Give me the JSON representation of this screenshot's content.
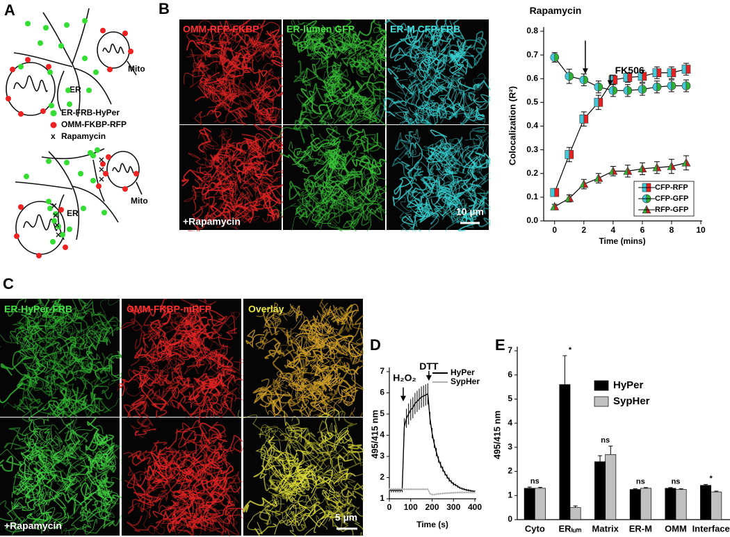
{
  "figure": {
    "panel_labels": [
      "A",
      "B",
      "C",
      "D",
      "E"
    ],
    "diagram": {
      "labels": [
        "ER",
        "Mito",
        "ER",
        "Mito"
      ],
      "legend": [
        "ER-FRB-HyPer",
        "OMM-FKBP-RFP",
        "Rapamycin"
      ],
      "legend_symbol": "x"
    },
    "images_b": {
      "channels": [
        "OMM-RFP-FKBP",
        "ER-lumen GFP",
        "ER-M CFP-FRB"
      ],
      "treatment": "+Rapamycin",
      "scale_bar": "10 µm"
    },
    "images_c": {
      "channels": [
        "ER-HyPer-FRB",
        "OMM-FKBP-mRFP",
        "Overlay"
      ],
      "treatment": "+Rapamycin",
      "scale_bar": "5 µm"
    }
  },
  "chart_data": [
    {
      "type": "line",
      "x_label": "Time (mins)",
      "y_label": "Colocalization (R²)",
      "x": [
        0,
        1,
        2,
        3,
        4,
        5,
        6,
        7,
        8,
        9
      ],
      "series": [
        {
          "name": "CFP-RFP",
          "marker": "square",
          "colors": [
            "#40c8d8",
            "#e82020"
          ],
          "values": [
            0.12,
            0.28,
            0.43,
            0.5,
            0.595,
            0.605,
            0.61,
            0.625,
            0.625,
            0.64
          ],
          "errors": [
            0.015,
            0.03,
            0.03,
            0.03,
            0.02,
            0.02,
            0.025,
            0.025,
            0.025,
            0.025
          ]
        },
        {
          "name": "CFP-GFP",
          "marker": "circle",
          "colors": [
            "#40c8d8",
            "#30b030"
          ],
          "values": [
            0.69,
            0.61,
            0.595,
            0.565,
            0.55,
            0.55,
            0.555,
            0.565,
            0.57,
            0.57
          ],
          "errors": [
            0.02,
            0.03,
            0.025,
            0.025,
            0.025,
            0.025,
            0.025,
            0.025,
            0.025,
            0.025
          ]
        },
        {
          "name": "RFP-GFP",
          "marker": "triangle",
          "colors": [
            "#30b030",
            "#c82020"
          ],
          "values": [
            0.06,
            0.095,
            0.155,
            0.18,
            0.21,
            0.21,
            0.22,
            0.225,
            0.23,
            0.245
          ],
          "errors": [
            0.01,
            0.015,
            0.02,
            0.02,
            0.02,
            0.025,
            0.025,
            0.025,
            0.03,
            0.03
          ]
        }
      ],
      "annotations": [
        {
          "text": "Rapamycin",
          "x": 2.1,
          "y": 0.62
        },
        {
          "text": "FK506",
          "x": 3.8,
          "y": 0.57
        }
      ],
      "xlim": [
        -0.75,
        10
      ],
      "xticks": [
        0,
        2,
        4,
        6,
        8,
        10
      ],
      "ylim": [
        0,
        0.8
      ],
      "yticks": [
        {
          "value": 0,
          "label": "0.0"
        },
        0.1,
        0.2,
        0.3,
        0.4,
        0.5,
        0.6,
        0.7,
        0.8
      ],
      "legend": "lower right"
    },
    {
      "type": "line",
      "x_label": "Time (s)",
      "y_label": "495/415 nm",
      "x": [
        0,
        10,
        20,
        30,
        40,
        50,
        60,
        70,
        80,
        90,
        100,
        110,
        120,
        130,
        140,
        150,
        160,
        170,
        180,
        190,
        200,
        210,
        220,
        230,
        240,
        250,
        260,
        270,
        280,
        290,
        300,
        310,
        320,
        330,
        340,
        350,
        360,
        370,
        380,
        390,
        400
      ],
      "series": [
        {
          "name": "HyPer",
          "color": "#000000",
          "values": [
            1.4,
            1.4,
            1.4,
            1.4,
            1.4,
            1.4,
            1.4,
            4.4,
            4.8,
            5.0,
            5.2,
            5.3,
            5.5,
            5.6,
            5.7,
            5.8,
            5.85,
            5.9,
            5.95,
            4.8,
            4.1,
            3.6,
            3.2,
            2.85,
            2.6,
            2.4,
            2.2,
            2.05,
            1.9,
            1.8,
            1.7,
            1.65,
            1.58,
            1.52,
            1.48,
            1.45,
            1.42,
            1.4,
            1.38,
            1.36,
            1.35
          ],
          "errors": [
            0.1,
            0.1,
            0.1,
            0.1,
            0.1,
            0.1,
            0.1,
            0.4,
            0.45,
            0.5,
            0.5,
            0.5,
            0.5,
            0.5,
            0.5,
            0.5,
            0.5,
            0.5,
            0.5,
            0.3,
            0.25,
            0.2,
            0.2,
            0.15,
            0.15,
            0.12,
            0.1,
            0.1,
            0.1,
            0.08,
            0.08,
            0.06,
            0.06,
            0.05,
            0.05,
            0.05,
            0.05,
            0.05,
            0.05,
            0.05,
            0.05
          ]
        },
        {
          "name": "SypHer",
          "color": "#b0b0b0",
          "values": [
            1.45,
            1.45,
            1.45,
            1.45,
            1.45,
            1.45,
            1.45,
            1.45,
            1.45,
            1.45,
            1.45,
            1.45,
            1.45,
            1.45,
            1.45,
            1.45,
            1.45,
            1.45,
            1.45,
            1.25,
            1.2,
            1.2,
            1.22,
            1.23,
            1.24,
            1.25,
            1.26,
            1.27,
            1.27,
            1.28,
            1.28,
            1.29,
            1.29,
            1.3,
            1.3,
            1.3,
            1.3,
            1.3,
            1.3,
            1.3,
            1.3
          ],
          "errors": [
            0.05,
            0.05,
            0.05,
            0.05,
            0.05,
            0.05,
            0.05,
            0.05,
            0.05,
            0.05,
            0.05,
            0.05,
            0.05,
            0.05,
            0.05,
            0.05,
            0.05,
            0.05,
            0.05,
            0.05,
            0.05,
            0.05,
            0.05,
            0.05,
            0.05,
            0.05,
            0.05,
            0.05,
            0.05,
            0.05,
            0.05,
            0.05,
            0.05,
            0.05,
            0.05,
            0.05,
            0.05,
            0.05,
            0.05,
            0.05,
            0.05
          ]
        }
      ],
      "annotations": [
        {
          "text": "H₂O₂",
          "x": 65,
          "y": 5.6
        },
        {
          "text": "DTT",
          "x": 185,
          "y": 6.57
        }
      ],
      "xlim": [
        0,
        400
      ],
      "xticks": [
        0,
        100,
        200,
        300,
        400
      ],
      "ylim": [
        1,
        7
      ],
      "yticks": [
        1,
        2,
        3,
        4,
        5,
        6,
        7
      ],
      "legend": "upper right"
    },
    {
      "type": "bar",
      "y_label": "495/415 nm",
      "categories": [
        "Cyto",
        "ERₗᵤₘ",
        "Matrix",
        "ER-M",
        "OMM",
        "Interface"
      ],
      "series": [
        {
          "name": "HyPer",
          "color": "#000000",
          "values": [
            1.3,
            5.6,
            2.4,
            1.25,
            1.3,
            1.42
          ],
          "errors": [
            0.05,
            1.2,
            0.25,
            0.03,
            0.03,
            0.04
          ]
        },
        {
          "name": "SypHer",
          "color": "#c0c0c0",
          "values": [
            1.3,
            0.5,
            2.7,
            1.3,
            1.25,
            1.15
          ],
          "errors": [
            0.04,
            0.07,
            0.35,
            0.03,
            0.03,
            0.03
          ]
        }
      ],
      "significance": [
        "ns",
        "*",
        "ns",
        "ns",
        "ns",
        "*"
      ],
      "ylim": [
        0,
        7
      ],
      "yticks": [
        0,
        1,
        2,
        3,
        4,
        5,
        6,
        7
      ],
      "legend": "upper right"
    }
  ]
}
